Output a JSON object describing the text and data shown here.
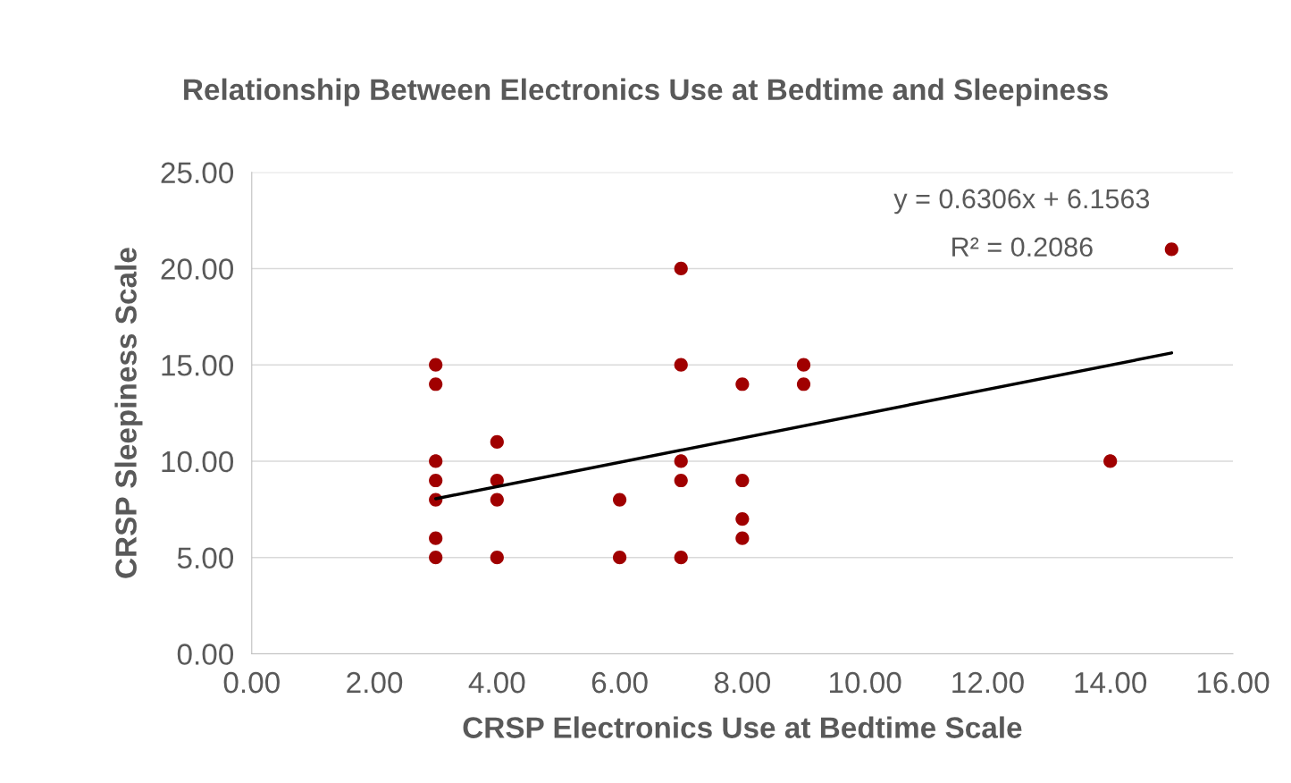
{
  "chart_data": {
    "type": "scatter",
    "title": "Relationship Between Electronics Use at Bedtime and Sleepiness",
    "xlabel": "CRSP Electronics Use at Bedtime Scale",
    "ylabel": "CRSP Sleepiness Scale",
    "annotations": [
      "y = 0.6306x + 6.1563",
      "R² = 0.2086"
    ],
    "series": [
      {
        "color": "#a00000",
        "marker": "circle",
        "x": [
          3,
          3,
          3,
          3,
          3,
          3,
          3,
          4,
          4,
          4,
          4,
          6,
          6,
          7,
          7,
          7,
          7,
          7,
          8,
          8,
          8,
          8,
          9,
          9,
          14,
          15
        ],
        "values": [
          15,
          14,
          10,
          9,
          8,
          6,
          5,
          11,
          9,
          8,
          5,
          8,
          5,
          20,
          15,
          10,
          9,
          5,
          14,
          9,
          7,
          6,
          15,
          14,
          10,
          21
        ]
      },
      {
        "type": "line",
        "color": "#000000",
        "line_style": "solid",
        "x": [
          3,
          15
        ],
        "values": [
          8.05,
          15.62
        ]
      }
    ],
    "xlim": [
      0,
      16
    ],
    "xticks": [
      {
        "value": 0,
        "label": "0.00"
      },
      {
        "value": 2,
        "label": "2.00"
      },
      {
        "value": 4,
        "label": "4.00"
      },
      {
        "value": 6,
        "label": "6.00"
      },
      {
        "value": 8,
        "label": "8.00"
      },
      {
        "value": 10,
        "label": "10.00"
      },
      {
        "value": 12,
        "label": "12.00"
      },
      {
        "value": 14,
        "label": "14.00"
      },
      {
        "value": 16,
        "label": "16.00"
      }
    ],
    "ylim": [
      0,
      25
    ],
    "yticks": [
      {
        "value": 0,
        "label": "0.00"
      },
      {
        "value": 5,
        "label": "5.00"
      },
      {
        "value": 10,
        "label": "10.00"
      },
      {
        "value": 15,
        "label": "15.00"
      },
      {
        "value": 20,
        "label": "20.00"
      },
      {
        "value": 25,
        "label": "25.00"
      }
    ],
    "grid": "y",
    "legend": false
  }
}
